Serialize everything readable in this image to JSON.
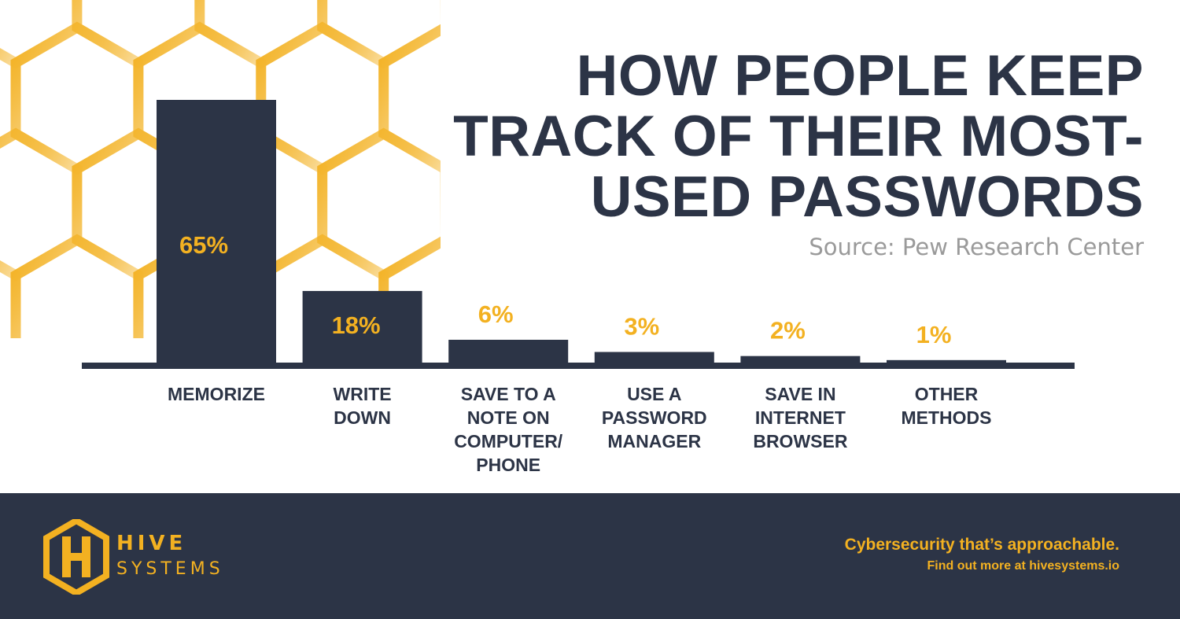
{
  "chart_data": {
    "type": "bar",
    "title": "HOW PEOPLE KEEP TRACK OF THEIR MOST-USED PASSWORDS",
    "subtitle": "Source: Pew Research Center",
    "categories": [
      "MEMORIZE",
      "WRITE DOWN",
      "SAVE TO A NOTE ON COMPUTER/ PHONE",
      "USE A PASSWORD MANAGER",
      "SAVE IN INTERNET BROWSER",
      "OTHER METHODS"
    ],
    "category_lines": [
      [
        "MEMORIZE"
      ],
      [
        "WRITE",
        "DOWN"
      ],
      [
        "SAVE TO A",
        "NOTE ON",
        "COMPUTER/",
        "PHONE"
      ],
      [
        "USE A",
        "PASSWORD",
        "MANAGER"
      ],
      [
        "SAVE IN",
        "INTERNET",
        "BROWSER"
      ],
      [
        "OTHER",
        "METHODS"
      ]
    ],
    "values": [
      65,
      18,
      6,
      3,
      2,
      1
    ],
    "value_labels": [
      "65%",
      "18%",
      "6%",
      "3%",
      "2%",
      "1%"
    ],
    "ylim": [
      0,
      65
    ],
    "xlabel": "",
    "ylabel": "",
    "grid": false,
    "legend": "none"
  },
  "title_lines": [
    "HOW PEOPLE KEEP",
    "TRACK OF THEIR MOST-",
    "USED PASSWORDS"
  ],
  "source": "Source: Pew Research Center",
  "footer": {
    "logo_word1": "HIVE",
    "logo_word2": "SYSTEMS",
    "tagline": "Cybersecurity that’s approachable.",
    "tagline_sub": "Find out more at hivesystems.io"
  },
  "colors": {
    "bar": "#2c3446",
    "accent": "#f3b121",
    "text": "#2c3446",
    "source": "#9a9a9a",
    "footer_bg": "#2c3446",
    "background": "#ffffff"
  },
  "icons": {
    "logo": "hive-hexagon-h-logo",
    "background": "honeycomb-pattern"
  }
}
